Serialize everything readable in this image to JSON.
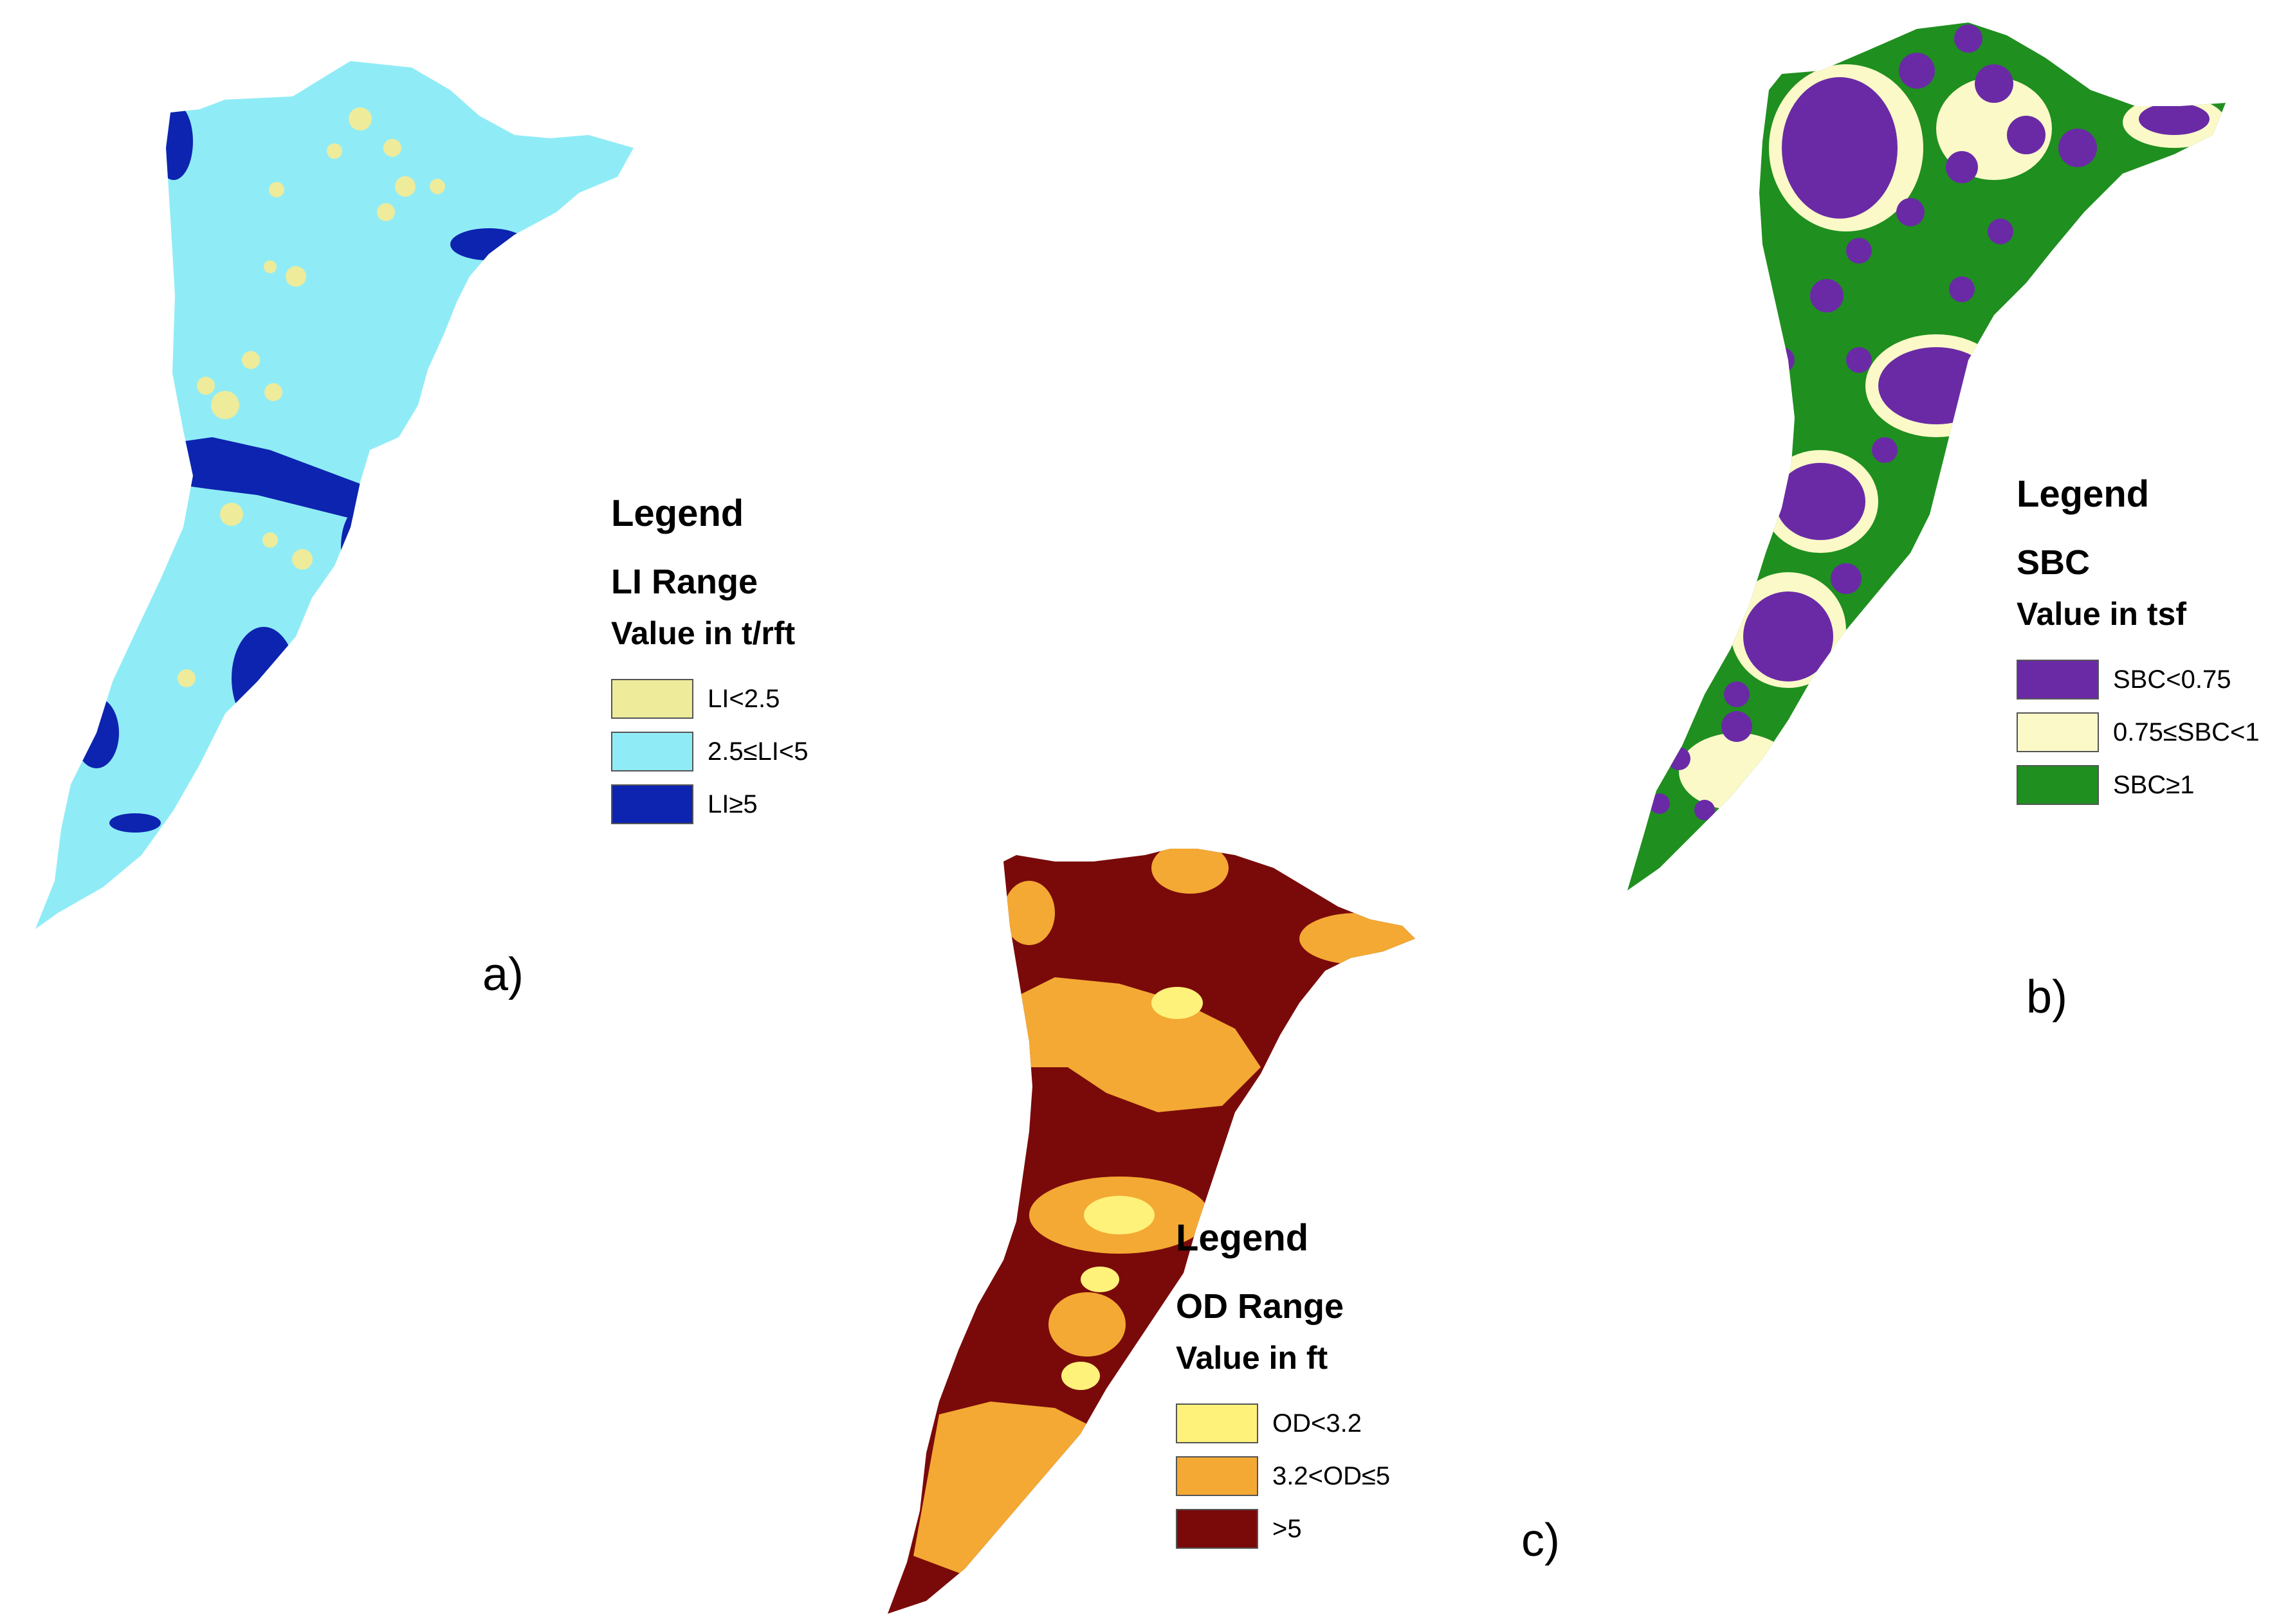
{
  "panels": [
    {
      "id": "a",
      "label": "a)",
      "legend": {
        "title": "Legend",
        "subtitle": "LI Range",
        "unit": "Value in t/rft",
        "items": [
          {
            "label": "LI<2.5",
            "color": "#eeeb9b"
          },
          {
            "label": "2.5≤LI<5",
            "color": "#8fecf6"
          },
          {
            "label": "LI≥5",
            "color": "#0d24b0"
          }
        ]
      }
    },
    {
      "id": "b",
      "label": "b)",
      "legend": {
        "title": "Legend",
        "subtitle": "SBC",
        "unit": "Value in tsf",
        "items": [
          {
            "label": "SBC<0.75",
            "color": "#6a2aa6"
          },
          {
            "label": "0.75≤SBC<1",
            "color": "#fbf9c8"
          },
          {
            "label": "SBC≥1",
            "color": "#1f8f1f"
          }
        ]
      }
    },
    {
      "id": "c",
      "label": "c)",
      "legend": {
        "title": "Legend",
        "subtitle": "OD Range",
        "unit": "Value in ft",
        "items": [
          {
            "label": "OD<3.2",
            "color": "#fff27a"
          },
          {
            "label": "3.2<OD≤5",
            "color": "#f3a933"
          },
          {
            "label": ">5",
            "color": "#7a0a0a"
          }
        ]
      }
    }
  ]
}
